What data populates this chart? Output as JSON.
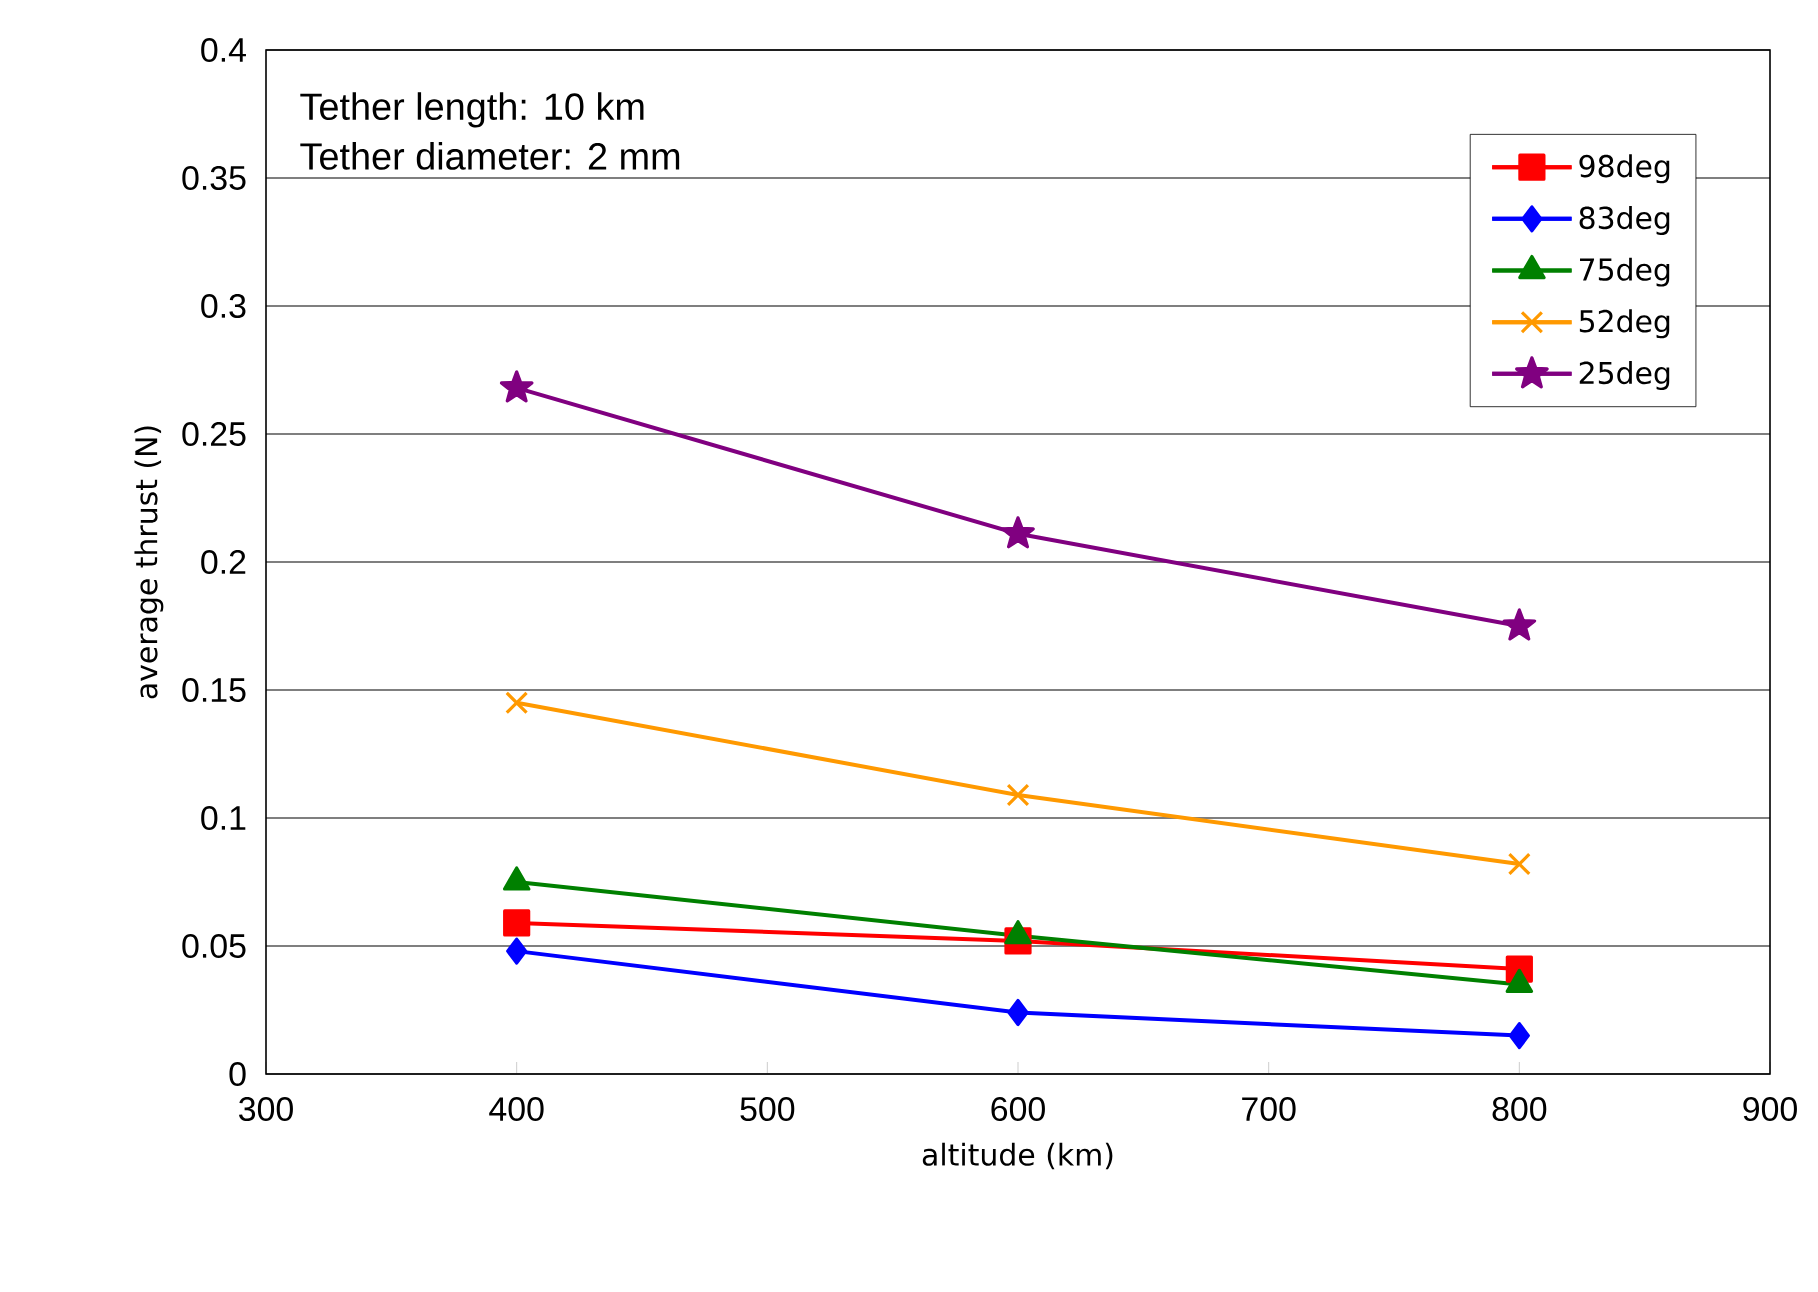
{
  "chart_data": {
    "type": "line",
    "xlabel": "altitude (km)",
    "ylabel": "average thrust (N)",
    "annotations": [
      "Tether length: 10 km",
      "Tether diameter: 2 mm"
    ],
    "x": [
      400,
      600,
      800
    ],
    "series": [
      {
        "name": "98deg",
        "color": "#ff0000",
        "marker": "square",
        "values": [
          0.059,
          0.052,
          0.041
        ]
      },
      {
        "name": "83deg",
        "color": "#0000ff",
        "marker": "diamond",
        "values": [
          0.048,
          0.024,
          0.015
        ]
      },
      {
        "name": "75deg",
        "color": "#008000",
        "marker": "triangle",
        "values": [
          0.075,
          0.054,
          0.035
        ]
      },
      {
        "name": "52deg",
        "color": "#ff9900",
        "marker": "cross",
        "values": [
          0.145,
          0.109,
          0.082
        ]
      },
      {
        "name": "25deg",
        "color": "#800080",
        "marker": "star",
        "values": [
          0.268,
          0.211,
          0.175
        ]
      }
    ],
    "xlim": [
      300,
      900
    ],
    "xticks": [
      300,
      400,
      500,
      600,
      700,
      800,
      900
    ],
    "ylim": [
      0,
      0.4
    ],
    "yticks": [
      0,
      0.05,
      0.1,
      0.15,
      0.2,
      0.25,
      0.3,
      0.35,
      0.4
    ],
    "grid": "y",
    "legend": "top right",
    "line_style": "solid"
  }
}
